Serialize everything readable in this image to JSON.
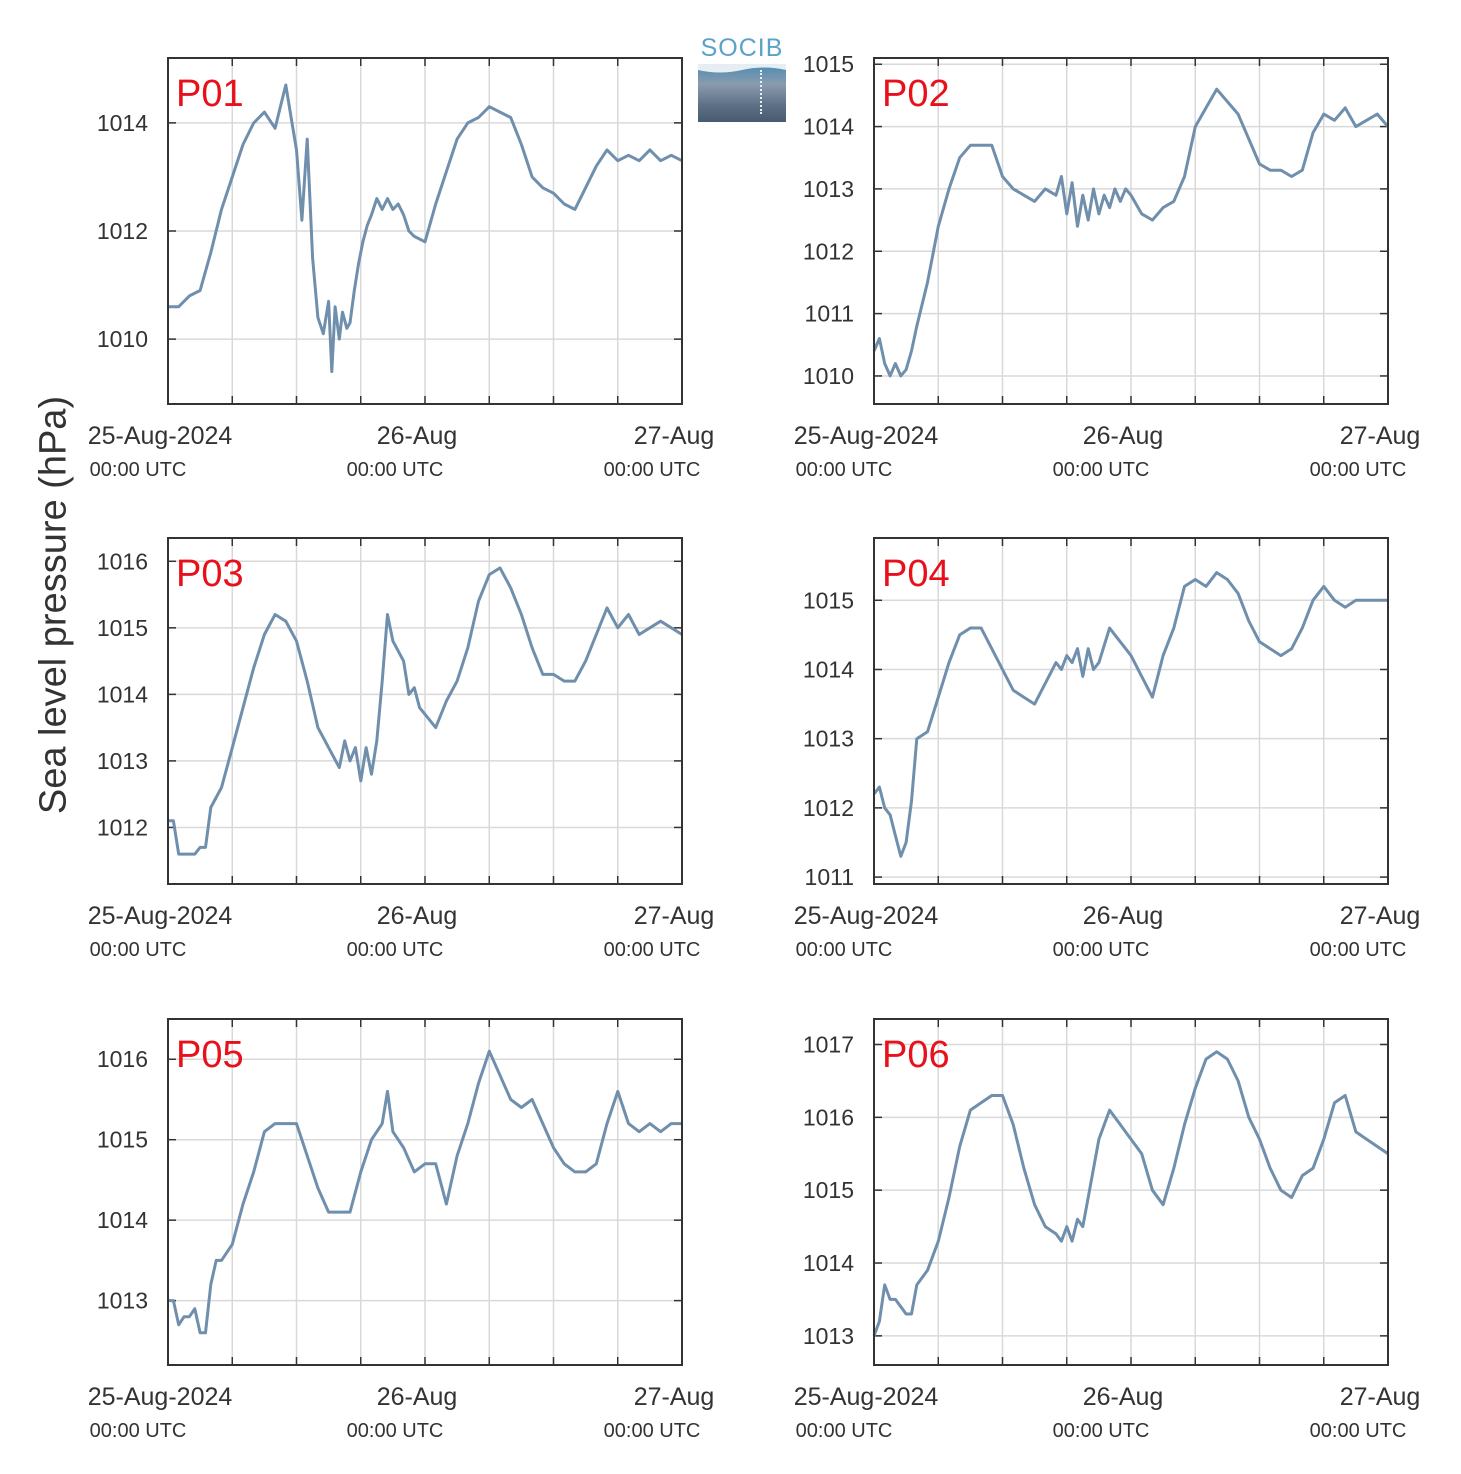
{
  "figure": {
    "ylabel": "Sea level pressure (hPa)",
    "logo_text": "SOCIB",
    "line_color": "#6f8fad",
    "label_color": "#e8101a",
    "grid_color": "#d9d9d9",
    "frame_color": "#333333",
    "icons": [
      "socib-logo-icon"
    ]
  },
  "chart_data": [
    {
      "type": "line",
      "title": "P01",
      "x_range_hours": [
        0,
        48
      ],
      "ylim": [
        1008.8,
        1015.2
      ],
      "yticks": [
        1010,
        1012,
        1014
      ],
      "xticks": [
        {
          "hour": 0,
          "date": "25-Aug-2024",
          "time": "00:00 UTC"
        },
        {
          "hour": 24,
          "date": "26-Aug",
          "time": "00:00 UTC"
        },
        {
          "hour": 48,
          "date": "27-Aug",
          "time": "00:00 UTC"
        }
      ],
      "x_gridlines_hours": [
        6,
        12,
        18,
        24,
        30,
        36,
        42
      ],
      "x": [
        0,
        1,
        2,
        3,
        4,
        5,
        6,
        7,
        8,
        9,
        10,
        10.5,
        11,
        11.5,
        12,
        12.5,
        13,
        13.5,
        14,
        14.5,
        15,
        15.3,
        15.6,
        16,
        16.3,
        16.7,
        17,
        17.4,
        17.8,
        18.2,
        18.6,
        19,
        19.5,
        20,
        20.5,
        21,
        21.5,
        22,
        22.5,
        23,
        24,
        25,
        26,
        27,
        28,
        29,
        30,
        31,
        32,
        33,
        34,
        35,
        36,
        37,
        38,
        39,
        40,
        41,
        42,
        43,
        44,
        45,
        46,
        47,
        48
      ],
      "y": [
        1010.6,
        1010.6,
        1010.8,
        1010.9,
        1011.6,
        1012.4,
        1013.0,
        1013.6,
        1014.0,
        1014.2,
        1013.9,
        1014.3,
        1014.7,
        1014.1,
        1013.5,
        1012.2,
        1013.7,
        1011.5,
        1010.4,
        1010.1,
        1010.7,
        1009.4,
        1010.6,
        1010.0,
        1010.5,
        1010.2,
        1010.3,
        1010.9,
        1011.4,
        1011.8,
        1012.1,
        1012.3,
        1012.6,
        1012.4,
        1012.6,
        1012.4,
        1012.5,
        1012.3,
        1012.0,
        1011.9,
        1011.8,
        1012.5,
        1013.1,
        1013.7,
        1014.0,
        1014.1,
        1014.3,
        1014.2,
        1014.1,
        1013.6,
        1013.0,
        1012.8,
        1012.7,
        1012.5,
        1012.4,
        1012.8,
        1013.2,
        1013.5,
        1013.3,
        1013.4,
        1013.3,
        1013.5,
        1013.3,
        1013.4,
        1013.3
      ]
    },
    {
      "type": "line",
      "title": "P02",
      "x_range_hours": [
        0,
        48
      ],
      "ylim": [
        1009.55,
        1015.1
      ],
      "yticks": [
        1010,
        1011,
        1012,
        1013,
        1014,
        1015
      ],
      "xticks": [
        {
          "hour": 0,
          "date": "25-Aug-2024",
          "time": "00:00 UTC"
        },
        {
          "hour": 24,
          "date": "26-Aug",
          "time": "00:00 UTC"
        },
        {
          "hour": 48,
          "date": "27-Aug",
          "time": "00:00 UTC"
        }
      ],
      "x_gridlines_hours": [
        6,
        12,
        18,
        24,
        30,
        36,
        42
      ],
      "x": [
        0,
        0.5,
        1,
        1.5,
        2,
        2.5,
        3,
        3.5,
        4,
        5,
        6,
        7,
        8,
        9,
        10,
        11,
        12,
        13,
        14,
        15,
        16,
        17,
        17.5,
        18,
        18.5,
        19,
        19.5,
        20,
        20.5,
        21,
        21.5,
        22,
        22.5,
        23,
        23.5,
        24,
        25,
        26,
        27,
        28,
        29,
        30,
        31,
        32,
        33,
        34,
        35,
        36,
        37,
        38,
        39,
        40,
        41,
        42,
        43,
        44,
        45,
        46,
        47,
        48
      ],
      "y": [
        1010.4,
        1010.6,
        1010.2,
        1010.0,
        1010.2,
        1010.0,
        1010.1,
        1010.4,
        1010.8,
        1011.5,
        1012.4,
        1013.0,
        1013.5,
        1013.7,
        1013.7,
        1013.7,
        1013.2,
        1013.0,
        1012.9,
        1012.8,
        1013.0,
        1012.9,
        1013.2,
        1012.6,
        1013.1,
        1012.4,
        1012.9,
        1012.5,
        1013.0,
        1012.6,
        1012.9,
        1012.7,
        1013.0,
        1012.8,
        1013.0,
        1012.9,
        1012.6,
        1012.5,
        1012.7,
        1012.8,
        1013.2,
        1014.0,
        1014.3,
        1014.6,
        1014.4,
        1014.2,
        1013.8,
        1013.4,
        1013.3,
        1013.3,
        1013.2,
        1013.3,
        1013.9,
        1014.2,
        1014.1,
        1014.3,
        1014.0,
        1014.1,
        1014.2,
        1014.0
      ]
    },
    {
      "type": "line",
      "title": "P03",
      "x_range_hours": [
        0,
        48
      ],
      "ylim": [
        1011.15,
        1016.35
      ],
      "yticks": [
        1012,
        1013,
        1014,
        1015,
        1016
      ],
      "xticks": [
        {
          "hour": 0,
          "date": "25-Aug-2024",
          "time": "00:00 UTC"
        },
        {
          "hour": 24,
          "date": "26-Aug",
          "time": "00:00 UTC"
        },
        {
          "hour": 48,
          "date": "27-Aug",
          "time": "00:00 UTC"
        }
      ],
      "x_gridlines_hours": [
        6,
        12,
        18,
        24,
        30,
        36,
        42
      ],
      "x": [
        0,
        0.5,
        1,
        1.5,
        2,
        2.5,
        3,
        3.5,
        4,
        5,
        6,
        7,
        8,
        9,
        10,
        11,
        12,
        13,
        14,
        15,
        16,
        16.5,
        17,
        17.5,
        18,
        18.5,
        19,
        19.5,
        20,
        20.5,
        21,
        22,
        22.5,
        23,
        23.5,
        24,
        25,
        26,
        27,
        28,
        29,
        30,
        31,
        32,
        33,
        34,
        35,
        36,
        37,
        38,
        39,
        40,
        41,
        42,
        43,
        44,
        45,
        46,
        47,
        48
      ],
      "y": [
        1012.1,
        1012.1,
        1011.6,
        1011.6,
        1011.6,
        1011.6,
        1011.7,
        1011.7,
        1012.3,
        1012.6,
        1013.2,
        1013.8,
        1014.4,
        1014.9,
        1015.2,
        1015.1,
        1014.8,
        1014.2,
        1013.5,
        1013.2,
        1012.9,
        1013.3,
        1013.0,
        1013.2,
        1012.7,
        1013.2,
        1012.8,
        1013.3,
        1014.2,
        1015.2,
        1014.8,
        1014.5,
        1014.0,
        1014.1,
        1013.8,
        1013.7,
        1013.5,
        1013.9,
        1014.2,
        1014.7,
        1015.4,
        1015.8,
        1015.9,
        1015.6,
        1015.2,
        1014.7,
        1014.3,
        1014.3,
        1014.2,
        1014.2,
        1014.5,
        1014.9,
        1015.3,
        1015.0,
        1015.2,
        1014.9,
        1015.0,
        1015.1,
        1015.0,
        1014.9
      ]
    },
    {
      "type": "line",
      "title": "P04",
      "x_range_hours": [
        0,
        48
      ],
      "ylim": [
        1010.9,
        1015.9
      ],
      "yticks": [
        1011,
        1012,
        1013,
        1014,
        1015
      ],
      "xticks": [
        {
          "hour": 0,
          "date": "25-Aug-2024",
          "time": "00:00 UTC"
        },
        {
          "hour": 24,
          "date": "26-Aug",
          "time": "00:00 UTC"
        },
        {
          "hour": 48,
          "date": "27-Aug",
          "time": "00:00 UTC"
        }
      ],
      "x_gridlines_hours": [
        6,
        12,
        18,
        24,
        30,
        36,
        42
      ],
      "x": [
        0,
        0.5,
        1,
        1.5,
        2,
        2.5,
        3,
        3.5,
        4,
        5,
        6,
        7,
        8,
        9,
        10,
        11,
        12,
        13,
        14,
        15,
        16,
        17,
        17.5,
        18,
        18.5,
        19,
        19.5,
        20,
        20.5,
        21,
        22,
        22.5,
        23,
        24,
        25,
        26,
        27,
        28,
        29,
        30,
        31,
        32,
        33,
        34,
        35,
        36,
        37,
        38,
        39,
        40,
        41,
        42,
        43,
        44,
        45,
        46,
        47,
        48
      ],
      "y": [
        1012.2,
        1012.3,
        1012.0,
        1011.9,
        1011.6,
        1011.3,
        1011.5,
        1012.1,
        1013.0,
        1013.1,
        1013.6,
        1014.1,
        1014.5,
        1014.6,
        1014.6,
        1014.3,
        1014.0,
        1013.7,
        1013.6,
        1013.5,
        1013.8,
        1014.1,
        1014.0,
        1014.2,
        1014.1,
        1014.3,
        1013.9,
        1014.3,
        1014.0,
        1014.1,
        1014.6,
        1014.5,
        1014.4,
        1014.2,
        1013.9,
        1013.6,
        1014.2,
        1014.6,
        1015.2,
        1015.3,
        1015.2,
        1015.4,
        1015.3,
        1015.1,
        1014.7,
        1014.4,
        1014.3,
        1014.2,
        1014.3,
        1014.6,
        1015.0,
        1015.2,
        1015.0,
        1014.9,
        1015.0,
        1015.0,
        1015.0,
        1015.0
      ]
    },
    {
      "type": "line",
      "title": "P05",
      "x_range_hours": [
        0,
        48
      ],
      "ylim": [
        1012.2,
        1016.5
      ],
      "yticks": [
        1013,
        1014,
        1015,
        1016
      ],
      "xticks": [
        {
          "hour": 0,
          "date": "25-Aug-2024",
          "time": "00:00 UTC"
        },
        {
          "hour": 24,
          "date": "26-Aug",
          "time": "00:00 UTC"
        },
        {
          "hour": 48,
          "date": "27-Aug",
          "time": "00:00 UTC"
        }
      ],
      "x_gridlines_hours": [
        6,
        12,
        18,
        24,
        30,
        36,
        42
      ],
      "x": [
        0,
        0.5,
        1,
        1.5,
        2,
        2.5,
        3,
        3.5,
        4,
        4.5,
        5,
        6,
        7,
        8,
        9,
        10,
        11,
        12,
        13,
        14,
        15,
        16,
        17,
        18,
        19,
        20,
        20.5,
        21,
        22,
        23,
        24,
        25,
        26,
        27,
        28,
        29,
        30,
        31,
        32,
        33,
        34,
        35,
        36,
        37,
        38,
        39,
        40,
        41,
        42,
        43,
        44,
        45,
        46,
        47,
        48
      ],
      "y": [
        1013.0,
        1013.0,
        1012.7,
        1012.8,
        1012.8,
        1012.9,
        1012.6,
        1012.6,
        1013.2,
        1013.5,
        1013.5,
        1013.7,
        1014.2,
        1014.6,
        1015.1,
        1015.2,
        1015.2,
        1015.2,
        1014.8,
        1014.4,
        1014.1,
        1014.1,
        1014.1,
        1014.6,
        1015.0,
        1015.2,
        1015.6,
        1015.1,
        1014.9,
        1014.6,
        1014.7,
        1014.7,
        1014.2,
        1014.8,
        1015.2,
        1015.7,
        1016.1,
        1015.8,
        1015.5,
        1015.4,
        1015.5,
        1015.2,
        1014.9,
        1014.7,
        1014.6,
        1014.6,
        1014.7,
        1015.2,
        1015.6,
        1015.2,
        1015.1,
        1015.2,
        1015.1,
        1015.2,
        1015.2
      ]
    },
    {
      "type": "line",
      "title": "P06",
      "x_range_hours": [
        0,
        48
      ],
      "ylim": [
        1012.6,
        1017.35
      ],
      "yticks": [
        1013,
        1014,
        1015,
        1016,
        1017
      ],
      "xticks": [
        {
          "hour": 0,
          "date": "25-Aug-2024",
          "time": "00:00 UTC"
        },
        {
          "hour": 24,
          "date": "26-Aug",
          "time": "00:00 UTC"
        },
        {
          "hour": 48,
          "date": "27-Aug",
          "time": "00:00 UTC"
        }
      ],
      "x_gridlines_hours": [
        6,
        12,
        18,
        24,
        30,
        36,
        42
      ],
      "x": [
        0,
        0.5,
        1,
        1.5,
        2,
        2.5,
        3,
        3.5,
        4,
        5,
        6,
        7,
        8,
        9,
        10,
        11,
        12,
        13,
        14,
        15,
        16,
        17,
        17.5,
        18,
        18.5,
        19,
        19.5,
        20,
        21,
        22,
        23,
        24,
        25,
        26,
        27,
        28,
        29,
        30,
        31,
        32,
        33,
        34,
        35,
        36,
        37,
        38,
        39,
        40,
        41,
        42,
        43,
        44,
        45,
        46,
        47,
        48
      ],
      "y": [
        1013.0,
        1013.2,
        1013.7,
        1013.5,
        1013.5,
        1013.4,
        1013.3,
        1013.3,
        1013.7,
        1013.9,
        1014.3,
        1014.9,
        1015.6,
        1016.1,
        1016.2,
        1016.3,
        1016.3,
        1015.9,
        1015.3,
        1014.8,
        1014.5,
        1014.4,
        1014.3,
        1014.5,
        1014.3,
        1014.6,
        1014.5,
        1014.9,
        1015.7,
        1016.1,
        1015.9,
        1015.7,
        1015.5,
        1015.0,
        1014.8,
        1015.3,
        1015.9,
        1016.4,
        1016.8,
        1016.9,
        1016.8,
        1016.5,
        1016.0,
        1015.7,
        1015.3,
        1015.0,
        1014.9,
        1015.2,
        1015.3,
        1015.7,
        1016.2,
        1016.3,
        1015.8,
        1015.7,
        1015.6,
        1015.5
      ]
    }
  ]
}
